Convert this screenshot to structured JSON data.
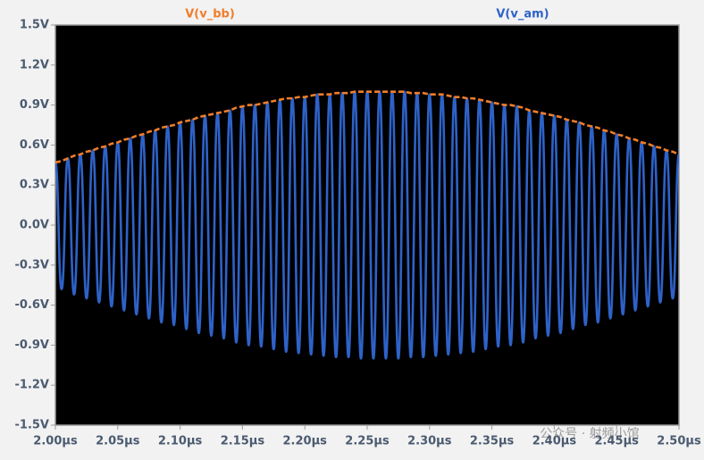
{
  "chart_data": {
    "type": "line",
    "watermark": "公众号 · 射频小馆",
    "x": [
      2,
      2.005,
      2.01,
      2.015,
      2.02,
      2.025,
      2.03,
      2.035,
      2.04,
      2.045,
      2.05,
      2.055,
      2.06,
      2.065,
      2.07,
      2.075,
      2.08,
      2.085,
      2.09,
      2.095,
      2.1,
      2.105,
      2.11,
      2.115,
      2.12,
      2.125,
      2.13,
      2.135,
      2.14,
      2.145,
      2.15,
      2.155,
      2.16,
      2.165,
      2.17,
      2.175,
      2.18,
      2.185,
      2.19,
      2.195,
      2.2,
      2.205,
      2.21,
      2.215,
      2.22,
      2.225,
      2.23,
      2.235,
      2.24,
      2.245,
      2.25,
      2.255,
      2.26,
      2.265,
      2.27,
      2.275,
      2.28,
      2.285,
      2.29,
      2.295,
      2.3,
      2.305,
      2.31,
      2.315,
      2.32,
      2.325,
      2.33,
      2.335,
      2.34,
      2.345,
      2.35,
      2.355,
      2.36,
      2.365,
      2.37,
      2.375,
      2.38,
      2.385,
      2.39,
      2.395,
      2.4,
      2.405,
      2.41,
      2.415,
      2.42,
      2.425,
      2.43,
      2.435,
      2.44,
      2.445,
      2.45,
      2.455,
      2.46,
      2.465,
      2.47,
      2.475,
      2.48,
      2.485,
      2.49,
      2.495,
      2.5
    ],
    "series": [
      {
        "name": "V(v_bb)",
        "color": "#f07d2a",
        "values": [
          0.47,
          0.48,
          0.5,
          0.52,
          0.53,
          0.55,
          0.56,
          0.58,
          0.59,
          0.61,
          0.62,
          0.64,
          0.65,
          0.67,
          0.68,
          0.7,
          0.71,
          0.73,
          0.74,
          0.75,
          0.77,
          0.78,
          0.79,
          0.81,
          0.82,
          0.83,
          0.84,
          0.85,
          0.86,
          0.88,
          0.89,
          0.9,
          0.9,
          0.91,
          0.92,
          0.93,
          0.94,
          0.95,
          0.95,
          0.96,
          0.96,
          0.97,
          0.98,
          0.98,
          0.98,
          0.99,
          0.99,
          0.99,
          1,
          1,
          1,
          1,
          1,
          1,
          1,
          1,
          1,
          0.99,
          0.99,
          0.99,
          0.98,
          0.98,
          0.98,
          0.97,
          0.96,
          0.96,
          0.95,
          0.95,
          0.94,
          0.93,
          0.92,
          0.91,
          0.9,
          0.9,
          0.89,
          0.88,
          0.86,
          0.85,
          0.84,
          0.83,
          0.82,
          0.81,
          0.79,
          0.78,
          0.77,
          0.75,
          0.74,
          0.73,
          0.71,
          0.7,
          0.68,
          0.67,
          0.65,
          0.64,
          0.62,
          0.61,
          0.59,
          0.58,
          0.56,
          0.55,
          0.53
        ]
      },
      {
        "name": "V(v_am)",
        "color": "#2e62c8",
        "values": [
          0.47,
          -0.48,
          0.5,
          -0.52,
          0.53,
          -0.55,
          0.56,
          -0.58,
          0.59,
          -0.61,
          0.62,
          -0.64,
          0.65,
          -0.67,
          0.68,
          -0.7,
          0.71,
          -0.73,
          0.74,
          -0.75,
          0.77,
          -0.78,
          0.79,
          -0.81,
          0.82,
          -0.83,
          0.84,
          -0.85,
          0.86,
          -0.88,
          0.89,
          -0.9,
          0.9,
          -0.91,
          0.92,
          -0.93,
          0.94,
          -0.95,
          0.95,
          -0.96,
          0.96,
          -0.97,
          0.98,
          -0.98,
          0.98,
          -0.99,
          0.99,
          -0.99,
          1,
          -1,
          1,
          -1,
          1,
          -1,
          1,
          -1,
          1,
          -0.99,
          0.99,
          -0.99,
          0.98,
          -0.98,
          0.98,
          -0.97,
          0.96,
          -0.96,
          0.95,
          -0.95,
          0.94,
          -0.93,
          0.92,
          -0.91,
          0.9,
          -0.9,
          0.89,
          -0.88,
          0.86,
          -0.85,
          0.84,
          -0.83,
          0.82,
          -0.81,
          0.79,
          -0.78,
          0.77,
          -0.75,
          0.74,
          -0.73,
          0.71,
          -0.7,
          0.68,
          -0.67,
          0.65,
          -0.64,
          0.62,
          -0.61,
          0.59,
          -0.58,
          0.56,
          -0.55,
          0.53
        ]
      }
    ],
    "xlim": [
      2.0,
      2.5
    ],
    "xticks": [
      {
        "value": 2.0,
        "label": "2.00µs"
      },
      {
        "value": 2.05,
        "label": "2.05µs"
      },
      {
        "value": 2.1,
        "label": "2.10µs"
      },
      {
        "value": 2.15,
        "label": "2.15µs"
      },
      {
        "value": 2.2,
        "label": "2.20µs"
      },
      {
        "value": 2.25,
        "label": "2.25µs"
      },
      {
        "value": 2.3,
        "label": "2.30µs"
      },
      {
        "value": 2.35,
        "label": "2.35µs"
      },
      {
        "value": 2.4,
        "label": "2.40µs"
      },
      {
        "value": 2.45,
        "label": "2.45µs"
      },
      {
        "value": 2.5,
        "label": "2.50µs"
      }
    ],
    "ylim": [
      -1.5,
      1.5
    ],
    "yticks": [
      {
        "value": 1.5,
        "label": "1.5V"
      },
      {
        "value": 1.2,
        "label": "1.2V"
      },
      {
        "value": 0.9,
        "label": "0.9V"
      },
      {
        "value": 0.6,
        "label": "0.6V"
      },
      {
        "value": 0.3,
        "label": "0.3V"
      },
      {
        "value": 0,
        "label": "0.0V"
      },
      {
        "value": -0.3,
        "label": "-0.3V"
      },
      {
        "value": -0.6,
        "label": "-0.6V"
      },
      {
        "value": -0.9,
        "label": "-0.9V"
      },
      {
        "value": -1.2,
        "label": "-1.2V"
      },
      {
        "value": -1.5,
        "label": "-1.5V"
      }
    ]
  }
}
